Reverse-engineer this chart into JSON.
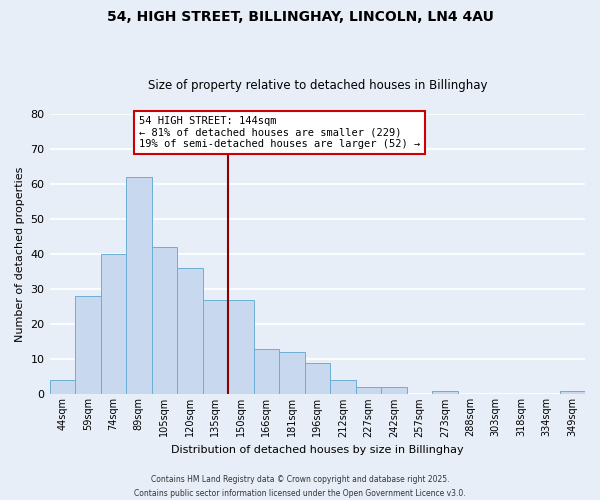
{
  "title1": "54, HIGH STREET, BILLINGHAY, LINCOLN, LN4 4AU",
  "title2": "Size of property relative to detached houses in Billinghay",
  "xlabel": "Distribution of detached houses by size in Billinghay",
  "ylabel": "Number of detached properties",
  "bin_labels": [
    "44sqm",
    "59sqm",
    "74sqm",
    "89sqm",
    "105sqm",
    "120sqm",
    "135sqm",
    "150sqm",
    "166sqm",
    "181sqm",
    "196sqm",
    "212sqm",
    "227sqm",
    "242sqm",
    "257sqm",
    "273sqm",
    "288sqm",
    "303sqm",
    "318sqm",
    "334sqm",
    "349sqm"
  ],
  "bar_heights": [
    4,
    28,
    40,
    62,
    42,
    36,
    27,
    27,
    13,
    12,
    9,
    4,
    2,
    2,
    0,
    1,
    0,
    0,
    0,
    0,
    1
  ],
  "bar_color": "#c8d9ef",
  "bar_edge_color": "#6baed6",
  "vline_x_index": 7,
  "vline_color": "#8b0000",
  "annotation_title": "54 HIGH STREET: 144sqm",
  "annotation_line1": "← 81% of detached houses are smaller (229)",
  "annotation_line2": "19% of semi-detached houses are larger (52) →",
  "annotation_box_color": "#ffffff",
  "annotation_box_edge": "#cc0000",
  "ylim": [
    0,
    80
  ],
  "yticks": [
    0,
    10,
    20,
    30,
    40,
    50,
    60,
    70,
    80
  ],
  "footer1": "Contains HM Land Registry data © Crown copyright and database right 2025.",
  "footer2": "Contains public sector information licensed under the Open Government Licence v3.0.",
  "bg_color": "#e8eef8",
  "grid_color": "#ffffff"
}
